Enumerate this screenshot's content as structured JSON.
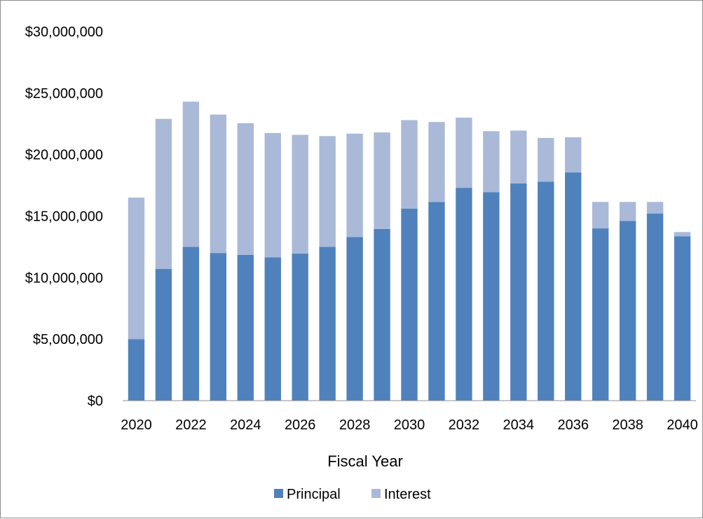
{
  "chart_data": {
    "type": "bar",
    "stacked": true,
    "title": "",
    "xlabel": "Fiscal Year",
    "ylabel": "",
    "ylim": [
      0,
      30000000
    ],
    "y_ticks": [
      "$0",
      "$5,000,000",
      "$10,000,000",
      "$15,000,000",
      "$20,000,000",
      "$25,000,000",
      "$30,000,000"
    ],
    "categories": [
      "2020",
      "2021",
      "2022",
      "2023",
      "2024",
      "2025",
      "2026",
      "2027",
      "2028",
      "2029",
      "2030",
      "2031",
      "2032",
      "2033",
      "2034",
      "2035",
      "2036",
      "2037",
      "2038",
      "2039",
      "2040"
    ],
    "x_tick_labels": [
      "2020",
      "",
      "2022",
      "",
      "2024",
      "",
      "2026",
      "",
      "2028",
      "",
      "2030",
      "",
      "2032",
      "",
      "2034",
      "",
      "2036",
      "",
      "2038",
      "",
      "2040"
    ],
    "series": [
      {
        "name": "Principal",
        "color": "#4f81bd",
        "values": [
          5000000,
          10700000,
          12500000,
          12000000,
          11850000,
          11650000,
          11950000,
          12500000,
          13300000,
          13950000,
          15600000,
          16150000,
          17300000,
          16950000,
          17650000,
          17800000,
          18550000,
          14000000,
          14600000,
          15200000,
          13350000
        ]
      },
      {
        "name": "Interest",
        "color": "#aab9d8",
        "values": [
          11500000,
          12200000,
          11800000,
          11250000,
          10700000,
          10100000,
          9650000,
          9000000,
          8400000,
          7850000,
          7200000,
          6500000,
          5700000,
          4950000,
          4300000,
          3550000,
          2850000,
          2150000,
          1550000,
          950000,
          350000
        ]
      }
    ],
    "grid": false,
    "legend": "bottom-center"
  }
}
